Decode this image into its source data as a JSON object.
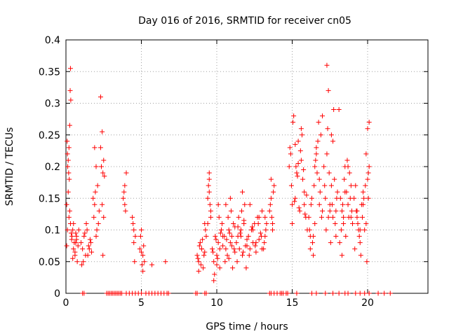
{
  "chart_data": {
    "type": "scatter",
    "title": "Day 016 of 2016, SRMTID for receiver cn05",
    "xlabel": "GPS time / hours",
    "ylabel": "SRMTID / TECUs",
    "xlim": [
      0,
      24
    ],
    "ylim": [
      0,
      0.4
    ],
    "grid": true,
    "marker": "+",
    "color": "#ff0000",
    "x_ticks": [
      0,
      5,
      10,
      15,
      20
    ],
    "x_tick_labels": [
      "0",
      "5",
      "10",
      "15",
      "20"
    ],
    "y_ticks": [
      0,
      0.05,
      0.1,
      0.15,
      0.2,
      0.25,
      0.3,
      0.35,
      0.4
    ],
    "y_tick_labels": [
      "0",
      "0.05",
      "0.1",
      "0.15",
      "0.2",
      "0.25",
      "0.3",
      "0.35",
      "0.4"
    ],
    "x": [
      0.05,
      0.08,
      0.1,
      0.12,
      0.15,
      0.18,
      0.2,
      0.22,
      0.25,
      0.28,
      0.3,
      0.32,
      0.35,
      0.38,
      0.1,
      0.2,
      0.3,
      0.15,
      0.25,
      0.05,
      0.4,
      0.45,
      0.5,
      0.55,
      0.6,
      0.65,
      0.7,
      0.75,
      0.8,
      0.85,
      0.5,
      0.6,
      0.7,
      0.45,
      0.65,
      1.0,
      1.1,
      1.2,
      1.3,
      1.4,
      1.5,
      1.6,
      1.7,
      1.15,
      1.35,
      1.55,
      1.25,
      1.45,
      1.65,
      1.05,
      1.8,
      1.9,
      2.0,
      2.1,
      2.2,
      1.85,
      1.95,
      2.05,
      2.15,
      1.9,
      2.0,
      2.3,
      2.4,
      2.5,
      2.35,
      2.45,
      2.55,
      2.3,
      2.4,
      2.5,
      2.45,
      3.8,
      3.9,
      4.0,
      3.85,
      3.95,
      3.9,
      4.4,
      4.5,
      4.6,
      4.45,
      4.55,
      4.5,
      4.9,
      5.0,
      5.1,
      5.2,
      4.95,
      5.05,
      5.15,
      5.0,
      5.1,
      5.7,
      6.6,
      8.7,
      8.8,
      8.9,
      9.0,
      9.1,
      9.2,
      9.3,
      8.75,
      8.85,
      8.95,
      9.05,
      9.15,
      9.25,
      8.8,
      9.0,
      9.2,
      9.4,
      9.5,
      9.6,
      9.45,
      9.55,
      9.5,
      9.6,
      9.4,
      9.5,
      9.7,
      9.8,
      9.9,
      10.0,
      10.1,
      10.2,
      10.3,
      10.4,
      9.75,
      9.85,
      9.95,
      10.05,
      10.15,
      10.25,
      10.35,
      9.8,
      10.0,
      10.2,
      10.4,
      10.1,
      10.5,
      10.6,
      10.7,
      10.8,
      10.9,
      11.0,
      11.1,
      11.2,
      10.55,
      10.65,
      10.75,
      10.85,
      10.95,
      11.05,
      11.15,
      10.6,
      10.8,
      11.0,
      11.2,
      10.9,
      11.3,
      11.4,
      11.5,
      11.6,
      11.7,
      11.8,
      11.9,
      12.0,
      11.35,
      11.45,
      11.55,
      11.65,
      11.75,
      11.85,
      11.95,
      11.4,
      11.6,
      11.8,
      12.0,
      11.7,
      12.1,
      12.2,
      12.3,
      12.4,
      12.5,
      12.6,
      12.7,
      12.8,
      12.9,
      13.0,
      12.15,
      12.35,
      12.55,
      12.75,
      12.95,
      12.2,
      12.4,
      12.6,
      12.8,
      13.0,
      13.1,
      13.2,
      13.3,
      13.15,
      13.25,
      13.2,
      13.5,
      13.6,
      13.7,
      13.8,
      13.55,
      13.65,
      13.75,
      13.6,
      13.7,
      14.8,
      14.9,
      15.0,
      15.1,
      15.2,
      15.3,
      15.4,
      15.5,
      15.6,
      15.7,
      15.8,
      15.9,
      16.0,
      14.85,
      14.95,
      15.05,
      15.15,
      15.25,
      15.35,
      15.45,
      15.55,
      15.65,
      15.75,
      15.85,
      15.95,
      15.0,
      15.2,
      15.4,
      15.6,
      15.8,
      16.1,
      16.2,
      16.3,
      16.4,
      16.5,
      16.6,
      16.7,
      16.8,
      16.9,
      17.0,
      16.15,
      16.25,
      16.35,
      16.45,
      16.55,
      16.65,
      16.75,
      16.85,
      16.95,
      16.2,
      16.4,
      16.6,
      16.8,
      17.0,
      16.5,
      17.1,
      17.2,
      17.3,
      17.4,
      17.5,
      17.6,
      17.7,
      17.8,
      17.9,
      18.0,
      17.15,
      17.25,
      17.35,
      17.45,
      17.55,
      17.65,
      17.75,
      17.85,
      17.95,
      17.3,
      17.5,
      17.7,
      17.9,
      17.4,
      17.6,
      18.1,
      18.2,
      18.3,
      18.4,
      18.5,
      18.6,
      18.7,
      18.8,
      18.9,
      19.0,
      18.15,
      18.25,
      18.35,
      18.45,
      18.55,
      18.65,
      18.75,
      18.85,
      18.95,
      18.3,
      18.5,
      18.7,
      18.9,
      18.4,
      19.1,
      19.2,
      19.3,
      19.4,
      19.5,
      19.6,
      19.7,
      19.8,
      19.9,
      20.0,
      20.1,
      19.15,
      19.25,
      19.35,
      19.45,
      19.55,
      19.65,
      19.75,
      19.85,
      19.95,
      20.05,
      19.3,
      19.5,
      19.7,
      19.9,
      20.0,
      20.1,
      20.05,
      1.1,
      1.2,
      2.7,
      2.8,
      2.9,
      3.0,
      3.1,
      3.2,
      3.3,
      3.4,
      3.5,
      3.6,
      3.7,
      4.0,
      4.2,
      4.4,
      4.6,
      4.8,
      5.0,
      5.3,
      5.5,
      5.7,
      5.9,
      6.1,
      6.3,
      6.5,
      6.7,
      6.8,
      8.6,
      8.7,
      9.2,
      9.3,
      13.5,
      13.6,
      13.8,
      14.0,
      14.2,
      14.3,
      14.4,
      14.6,
      14.7,
      15.3,
      16.3,
      16.6,
      17.2,
      17.7,
      18.1,
      18.5,
      18.7,
      19.2,
      19.5,
      19.8,
      20.1,
      20.7,
      21.1,
      21.5
    ],
    "y": [
      0.14,
      0.24,
      0.22,
      0.2,
      0.21,
      0.19,
      0.23,
      0.18,
      0.265,
      0.32,
      0.355,
      0.305,
      0.095,
      0.085,
      0.1,
      0.12,
      0.11,
      0.16,
      0.13,
      0.075,
      0.09,
      0.1,
      0.07,
      0.08,
      0.06,
      0.095,
      0.085,
      0.05,
      0.075,
      0.1,
      0.11,
      0.065,
      0.09,
      0.055,
      0.08,
      0.08,
      0.07,
      0.09,
      0.06,
      0.1,
      0.075,
      0.085,
      0.065,
      0.05,
      0.11,
      0.07,
      0.095,
      0.06,
      0.08,
      0.045,
      0.15,
      0.23,
      0.2,
      0.17,
      0.13,
      0.12,
      0.16,
      0.1,
      0.11,
      0.14,
      0.09,
      0.31,
      0.255,
      0.21,
      0.2,
      0.19,
      0.185,
      0.23,
      0.14,
      0.12,
      0.06,
      0.15,
      0.14,
      0.19,
      0.16,
      0.13,
      0.17,
      0.12,
      0.1,
      0.09,
      0.11,
      0.05,
      0.08,
      0.07,
      0.1,
      0.06,
      0.05,
      0.09,
      0.045,
      0.075,
      0.065,
      0.035,
      0.045,
      0.05,
      0.06,
      0.05,
      0.08,
      0.07,
      0.04,
      0.065,
      0.09,
      0.055,
      0.075,
      0.045,
      0.085,
      0.06,
      0.1,
      0.035,
      0.07,
      0.11,
      0.15,
      0.18,
      0.12,
      0.17,
      0.14,
      0.16,
      0.13,
      0.11,
      0.19,
      0.07,
      0.05,
      0.09,
      0.06,
      0.08,
      0.04,
      0.1,
      0.075,
      0.065,
      0.03,
      0.085,
      0.055,
      0.12,
      0.095,
      0.11,
      0.02,
      0.045,
      0.07,
      0.09,
      0.14,
      0.09,
      0.07,
      0.06,
      0.1,
      0.08,
      0.075,
      0.11,
      0.065,
      0.05,
      0.085,
      0.12,
      0.095,
      0.13,
      0.04,
      0.07,
      0.14,
      0.055,
      0.09,
      0.105,
      0.15,
      0.08,
      0.09,
      0.07,
      0.1,
      0.06,
      0.11,
      0.075,
      0.085,
      0.05,
      0.12,
      0.095,
      0.13,
      0.065,
      0.14,
      0.04,
      0.105,
      0.09,
      0.115,
      0.075,
      0.16,
      0.09,
      0.07,
      0.1,
      0.08,
      0.11,
      0.065,
      0.12,
      0.085,
      0.095,
      0.13,
      0.06,
      0.105,
      0.075,
      0.11,
      0.09,
      0.14,
      0.1,
      0.08,
      0.12,
      0.07,
      0.07,
      0.09,
      0.11,
      0.08,
      0.1,
      0.12,
      0.13,
      0.15,
      0.11,
      0.17,
      0.14,
      0.12,
      0.16,
      0.18,
      0.1,
      0.2,
      0.22,
      0.14,
      0.28,
      0.15,
      0.19,
      0.24,
      0.13,
      0.21,
      0.18,
      0.16,
      0.12,
      0.1,
      0.23,
      0.17,
      0.27,
      0.145,
      0.2,
      0.185,
      0.135,
      0.225,
      0.25,
      0.195,
      0.125,
      0.155,
      0.11,
      0.235,
      0.205,
      0.26,
      0.14,
      0.12,
      0.07,
      0.15,
      0.09,
      0.2,
      0.22,
      0.24,
      0.18,
      0.25,
      0.13,
      0.1,
      0.14,
      0.08,
      0.17,
      0.21,
      0.19,
      0.27,
      0.16,
      0.12,
      0.09,
      0.06,
      0.23,
      0.14,
      0.28,
      0.11,
      0.2,
      0.15,
      0.36,
      0.32,
      0.14,
      0.25,
      0.12,
      0.18,
      0.13,
      0.16,
      0.17,
      0.1,
      0.26,
      0.19,
      0.08,
      0.14,
      0.29,
      0.11,
      0.15,
      0.22,
      0.13,
      0.24,
      0.09,
      0.12,
      0.17,
      0.29,
      0.15,
      0.13,
      0.12,
      0.2,
      0.16,
      0.14,
      0.19,
      0.17,
      0.11,
      0.08,
      0.1,
      0.14,
      0.18,
      0.09,
      0.21,
      0.12,
      0.15,
      0.13,
      0.06,
      0.16,
      0.2,
      0.12,
      0.11,
      0.15,
      0.17,
      0.12,
      0.1,
      0.08,
      0.14,
      0.16,
      0.1,
      0.11,
      0.18,
      0.2,
      0.07,
      0.13,
      0.11,
      0.09,
      0.06,
      0.12,
      0.15,
      0.17,
      0.05,
      0.19,
      0.13,
      0.1,
      0.14,
      0.22,
      0.26,
      0.27,
      0.15,
      0,
      0,
      0,
      0,
      0,
      0,
      0,
      0,
      0,
      0,
      0,
      0,
      0,
      0,
      0,
      0,
      0,
      0,
      0,
      0,
      0,
      0,
      0,
      0,
      0,
      0,
      0,
      0,
      0,
      0,
      0,
      0,
      0,
      0,
      0,
      0,
      0,
      0,
      0,
      0,
      0,
      0,
      0,
      0,
      0,
      0,
      0,
      0,
      0,
      0,
      0,
      0,
      0,
      0,
      0,
      0
    ]
  }
}
